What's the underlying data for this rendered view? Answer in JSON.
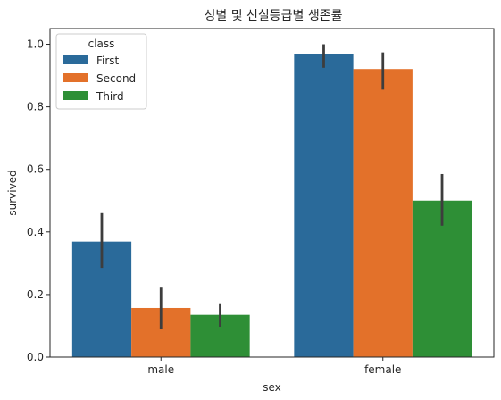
{
  "chart_data": {
    "type": "bar",
    "title": "성별 및 선실등급별 생존률",
    "xlabel": "sex",
    "ylabel": "survived",
    "categories": [
      "male",
      "female"
    ],
    "series": [
      {
        "name": "First",
        "color": "#2a6a9a",
        "values": [
          0.369,
          0.968
        ],
        "ci": [
          [
            0.285,
            0.46
          ],
          [
            0.925,
            1.0
          ]
        ]
      },
      {
        "name": "Second",
        "color": "#e3712a",
        "values": [
          0.157,
          0.921
        ],
        "ci": [
          [
            0.09,
            0.222
          ],
          [
            0.855,
            0.974
          ]
        ]
      },
      {
        "name": "Third",
        "color": "#2e8f36",
        "values": [
          0.135,
          0.5
        ],
        "ci": [
          [
            0.097,
            0.172
          ],
          [
            0.42,
            0.585
          ]
        ]
      }
    ],
    "ylim": [
      0,
      1.05
    ],
    "yticks": [
      0.0,
      0.2,
      0.4,
      0.6,
      0.8,
      1.0
    ],
    "ytick_labels": [
      "0.0",
      "0.2",
      "0.4",
      "0.6",
      "0.8",
      "1.0"
    ],
    "grid": false,
    "legend": {
      "title": "class",
      "position": "top-left"
    }
  }
}
